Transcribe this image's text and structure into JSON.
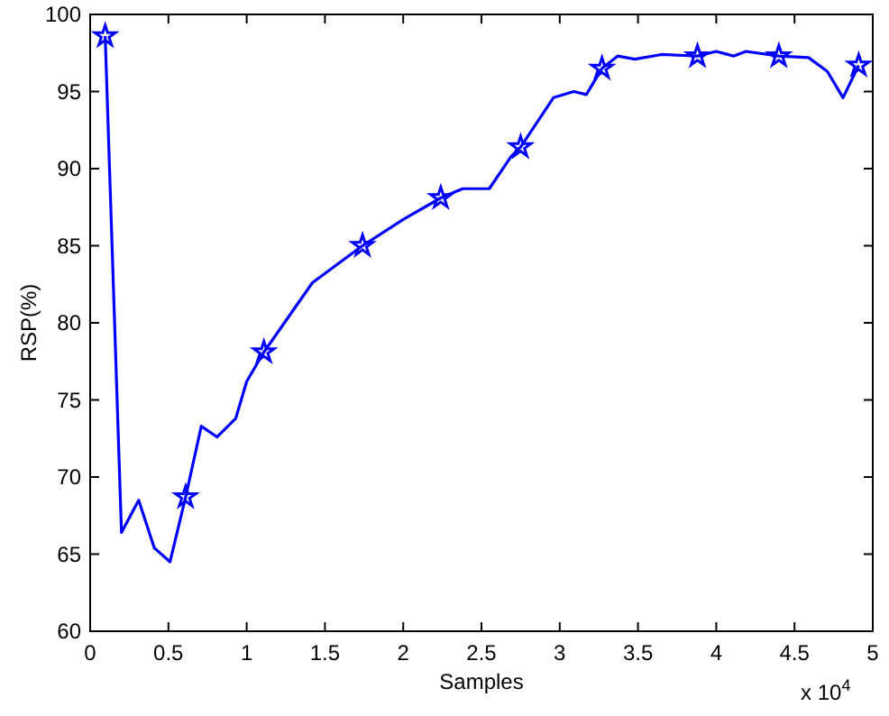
{
  "chart_data": {
    "type": "line",
    "xlabel": "Samples",
    "ylabel": "RSP(%)",
    "annotations": [
      "x 10$^{4}$"
    ],
    "xlim": [
      0,
      5
    ],
    "xticks": [
      0,
      0.5,
      1,
      1.5,
      2,
      2.5,
      3,
      3.5,
      4,
      4.5,
      5
    ],
    "ylim": [
      60,
      100
    ],
    "yticks": [
      60,
      65,
      70,
      75,
      80,
      85,
      90,
      95,
      100
    ],
    "grid": false,
    "series": [
      {
        "color": "#0000ff",
        "marker": "none",
        "x": [
          0.096,
          0.2,
          0.31,
          0.41,
          0.51,
          0.61,
          0.71,
          0.81,
          0.93,
          1.0,
          1.11,
          1.42,
          1.74,
          2.0,
          2.24,
          2.38,
          2.55,
          2.69,
          2.75,
          2.96,
          3.09,
          3.17,
          3.27,
          3.37,
          3.48,
          3.65,
          3.88,
          4.0,
          4.11,
          4.19,
          4.4,
          4.59,
          4.71,
          4.81,
          4.91
        ],
        "values": [
          98.6,
          66.4,
          68.5,
          65.4,
          64.5,
          68.7,
          73.3,
          72.6,
          73.8,
          76.2,
          78.1,
          82.6,
          85.0,
          86.7,
          88.1,
          88.7,
          88.7,
          90.8,
          91.4,
          94.6,
          95.0,
          94.8,
          96.5,
          97.3,
          97.1,
          97.4,
          97.3,
          97.6,
          97.3,
          97.6,
          97.3,
          97.2,
          96.3,
          94.6,
          96.7
        ]
      },
      {
        "type": "scatter",
        "color": "#0000ff",
        "marker": "star",
        "x": [
          0.096,
          0.61,
          1.11,
          1.74,
          2.24,
          2.75,
          3.27,
          3.88,
          4.4,
          4.91
        ],
        "values": [
          98.6,
          68.7,
          78.1,
          85.0,
          88.1,
          91.4,
          96.5,
          97.3,
          97.3,
          96.7
        ]
      }
    ]
  }
}
